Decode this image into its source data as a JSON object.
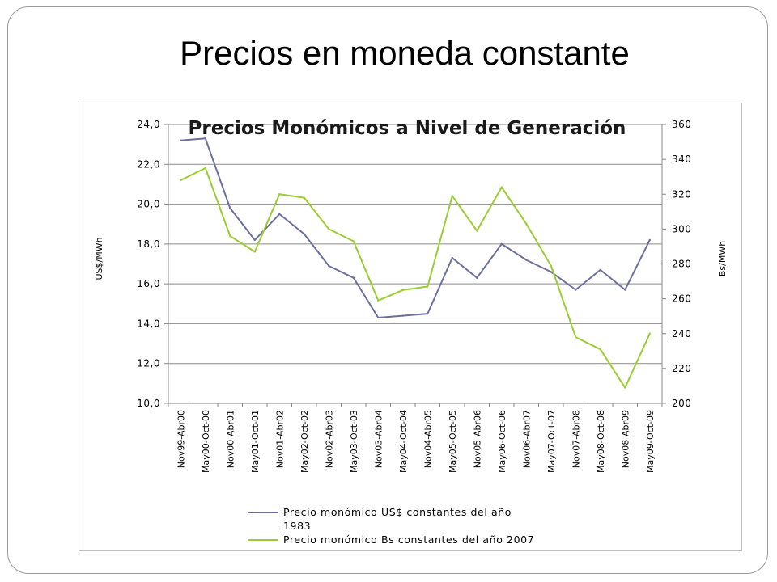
{
  "slide": {
    "title": "Precios en moneda constante"
  },
  "colors": {
    "usd_series": "#6c6f9e",
    "bs_series": "#9acd32",
    "gridline": "#8a8a8a"
  },
  "chart_data": {
    "type": "line",
    "title": "Precios Monómicos a Nivel de Generación",
    "ylabel": "US$/MWh",
    "y2label": "Bs/MWh",
    "ylim": [
      10,
      24
    ],
    "y2lim": [
      200,
      360
    ],
    "yticks": [
      "10,0",
      "12,0",
      "14,0",
      "16,0",
      "18,0",
      "20,0",
      "22,0",
      "24,0"
    ],
    "y2ticks": [
      "200",
      "220",
      "240",
      "260",
      "280",
      "300",
      "320",
      "340",
      "360"
    ],
    "grid": true,
    "legend_position": "bottom",
    "categories": [
      "Nov99-Abr00",
      "May00-Oct-00",
      "Nov00-Abr01",
      "May01-Oct-01",
      "Nov01-Abr02",
      "May02-Oct-02",
      "Nov02-Abr03",
      "May03-Oct-03",
      "Nov03-Abr04",
      "May04-Oct-04",
      "Nov04-Abr05",
      "May05-Oct-05",
      "Nov05-Abr06",
      "May06-Oct-06",
      "Nov06-Abr07",
      "May07-Oct-07",
      "Nov07-Abr08",
      "May08-Oct-08",
      "Nov08-Abr09",
      "May09-Oct-09"
    ],
    "series": [
      {
        "name": "Precio monómico US$ constantes del año 1983",
        "axis": "left",
        "values": [
          23.2,
          23.3,
          19.8,
          18.2,
          19.5,
          18.5,
          16.9,
          16.3,
          14.3,
          14.4,
          14.5,
          17.3,
          16.3,
          18.0,
          17.2,
          16.6,
          15.7,
          16.7,
          15.7,
          18.2
        ]
      },
      {
        "name": "Precio monómico Bs constantes del año 2007",
        "axis": "right",
        "values": [
          328,
          335,
          296,
          287,
          320,
          318,
          300,
          293,
          259,
          265,
          267,
          319,
          299,
          324,
          303,
          279,
          238,
          231,
          209,
          240
        ]
      }
    ]
  }
}
